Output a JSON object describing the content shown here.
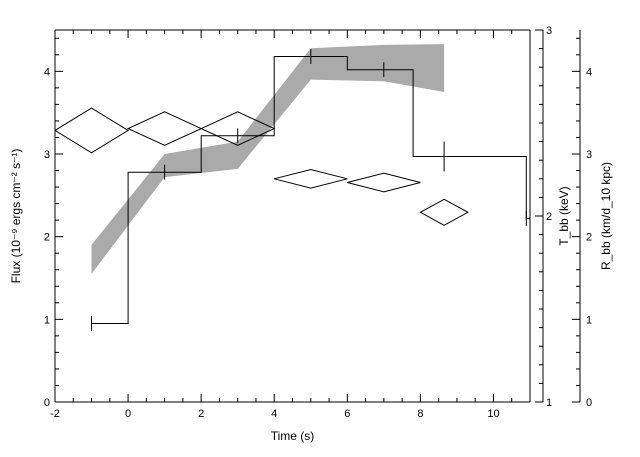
{
  "chart_data": {
    "type": "line",
    "x_axis": {
      "label": "Time (s)",
      "range": [
        -2,
        11
      ],
      "ticks": [
        -2,
        0,
        2,
        4,
        6,
        8,
        10
      ]
    },
    "y_left": {
      "label": "Flux (10⁻⁹ ergs cm⁻² s⁻¹)",
      "range": [
        0,
        4.5
      ],
      "ticks": [
        0,
        1,
        2,
        3,
        4
      ]
    },
    "y_right_inner": {
      "label": "T_bb (keV)",
      "range": [
        1,
        3
      ],
      "ticks": [
        1,
        2,
        3
      ]
    },
    "y_right_outer": {
      "label": "R_bb (km/d_10 kpc)",
      "range": [
        0,
        4.5
      ],
      "ticks": [
        0,
        1,
        2,
        3,
        4
      ]
    },
    "series": [
      {
        "role": "flux histogram (step)",
        "axis": "y_left",
        "bins": [
          {
            "x0": -1.0,
            "x1": 0.0,
            "y": 0.95,
            "err": 0.09
          },
          {
            "x0": 0.0,
            "x1": 2.0,
            "y": 2.78,
            "err": 0.09
          },
          {
            "x0": 2.0,
            "x1": 4.0,
            "y": 3.22,
            "err": 0.09
          },
          {
            "x0": 4.0,
            "x1": 6.0,
            "y": 4.18,
            "err": 0.09
          },
          {
            "x0": 6.0,
            "x1": 7.8,
            "y": 4.02,
            "err": 0.09
          },
          {
            "x0": 7.8,
            "x1": 10.9,
            "y": 2.97,
            "err": 0.18
          },
          {
            "x0": 10.9,
            "x1": 11.0,
            "y": 2.22,
            "err": 0.09
          }
        ],
        "error_bar_x": [
          -1.0,
          1.0,
          3.0,
          5.0,
          7.0,
          8.65,
          10.9
        ]
      },
      {
        "role": "temperature diamonds",
        "axis": "y_right_inner",
        "points": [
          {
            "x": -1.0,
            "y": 2.46,
            "dx": 1.0,
            "dy": 0.12
          },
          {
            "x": 1.0,
            "y": 2.47,
            "dx": 1.0,
            "dy": 0.09
          },
          {
            "x": 3.0,
            "y": 2.47,
            "dx": 1.0,
            "dy": 0.09
          },
          {
            "x": 5.0,
            "y": 2.2,
            "dx": 1.0,
            "dy": 0.05
          },
          {
            "x": 7.0,
            "y": 2.18,
            "dx": 1.0,
            "dy": 0.05
          },
          {
            "x": 8.65,
            "y": 2.02,
            "dx": 0.65,
            "dy": 0.07
          }
        ]
      },
      {
        "role": "radius band",
        "axis": "y_right_outer",
        "color": "#aaaaaa",
        "x": [
          -1.0,
          1.0,
          3.0,
          5.0,
          7.0,
          8.65
        ],
        "lower": [
          1.55,
          2.72,
          2.82,
          3.9,
          3.88,
          3.75
        ],
        "upper": [
          1.9,
          3.0,
          3.15,
          4.28,
          4.32,
          4.33
        ]
      }
    ],
    "grid": false,
    "legend": "none"
  }
}
